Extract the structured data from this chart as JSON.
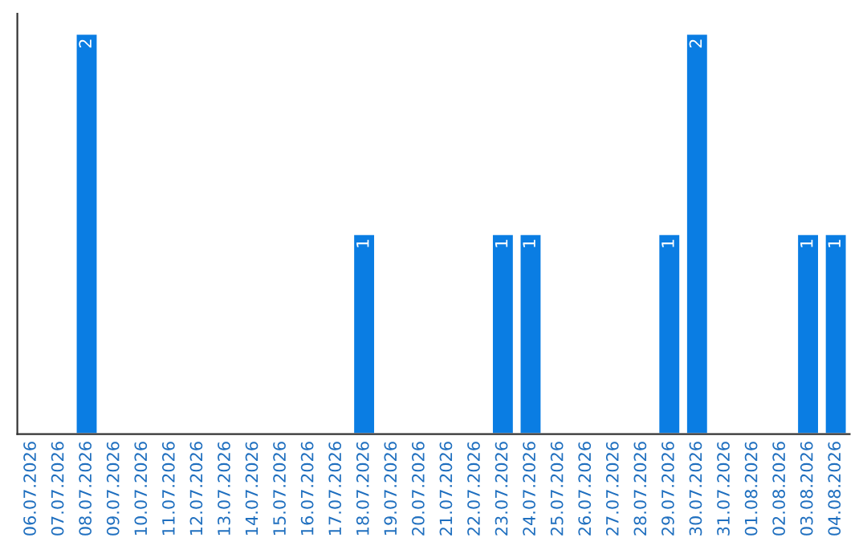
{
  "chart_data": {
    "type": "bar",
    "categories": [
      "06.07.2026",
      "07.07.2026",
      "08.07.2026",
      "09.07.2026",
      "10.07.2026",
      "11.07.2026",
      "12.07.2026",
      "13.07.2026",
      "14.07.2026",
      "15.07.2026",
      "16.07.2026",
      "17.07.2026",
      "18.07.2026",
      "19.07.2026",
      "20.07.2026",
      "21.07.2026",
      "22.07.2026",
      "23.07.2026",
      "24.07.2026",
      "25.07.2026",
      "26.07.2026",
      "27.07.2026",
      "28.07.2026",
      "29.07.2026",
      "30.07.2026",
      "31.07.2026",
      "01.08.2026",
      "02.08.2026",
      "03.08.2026",
      "04.08.2026"
    ],
    "values": [
      0,
      0,
      2,
      0,
      0,
      0,
      0,
      0,
      0,
      0,
      0,
      0,
      1,
      0,
      0,
      0,
      0,
      1,
      1,
      0,
      0,
      0,
      0,
      1,
      2,
      0,
      0,
      0,
      1,
      1
    ],
    "value_labels": [
      null,
      null,
      "2",
      null,
      null,
      null,
      null,
      null,
      null,
      null,
      null,
      null,
      "1",
      null,
      null,
      null,
      null,
      "1",
      "1",
      null,
      null,
      null,
      null,
      "1",
      "2",
      null,
      null,
      null,
      "1",
      "1"
    ],
    "color": "#0a7de3",
    "ylim": [
      0,
      2.1
    ],
    "tick_labels": "x",
    "grid": false,
    "legend": false
  }
}
